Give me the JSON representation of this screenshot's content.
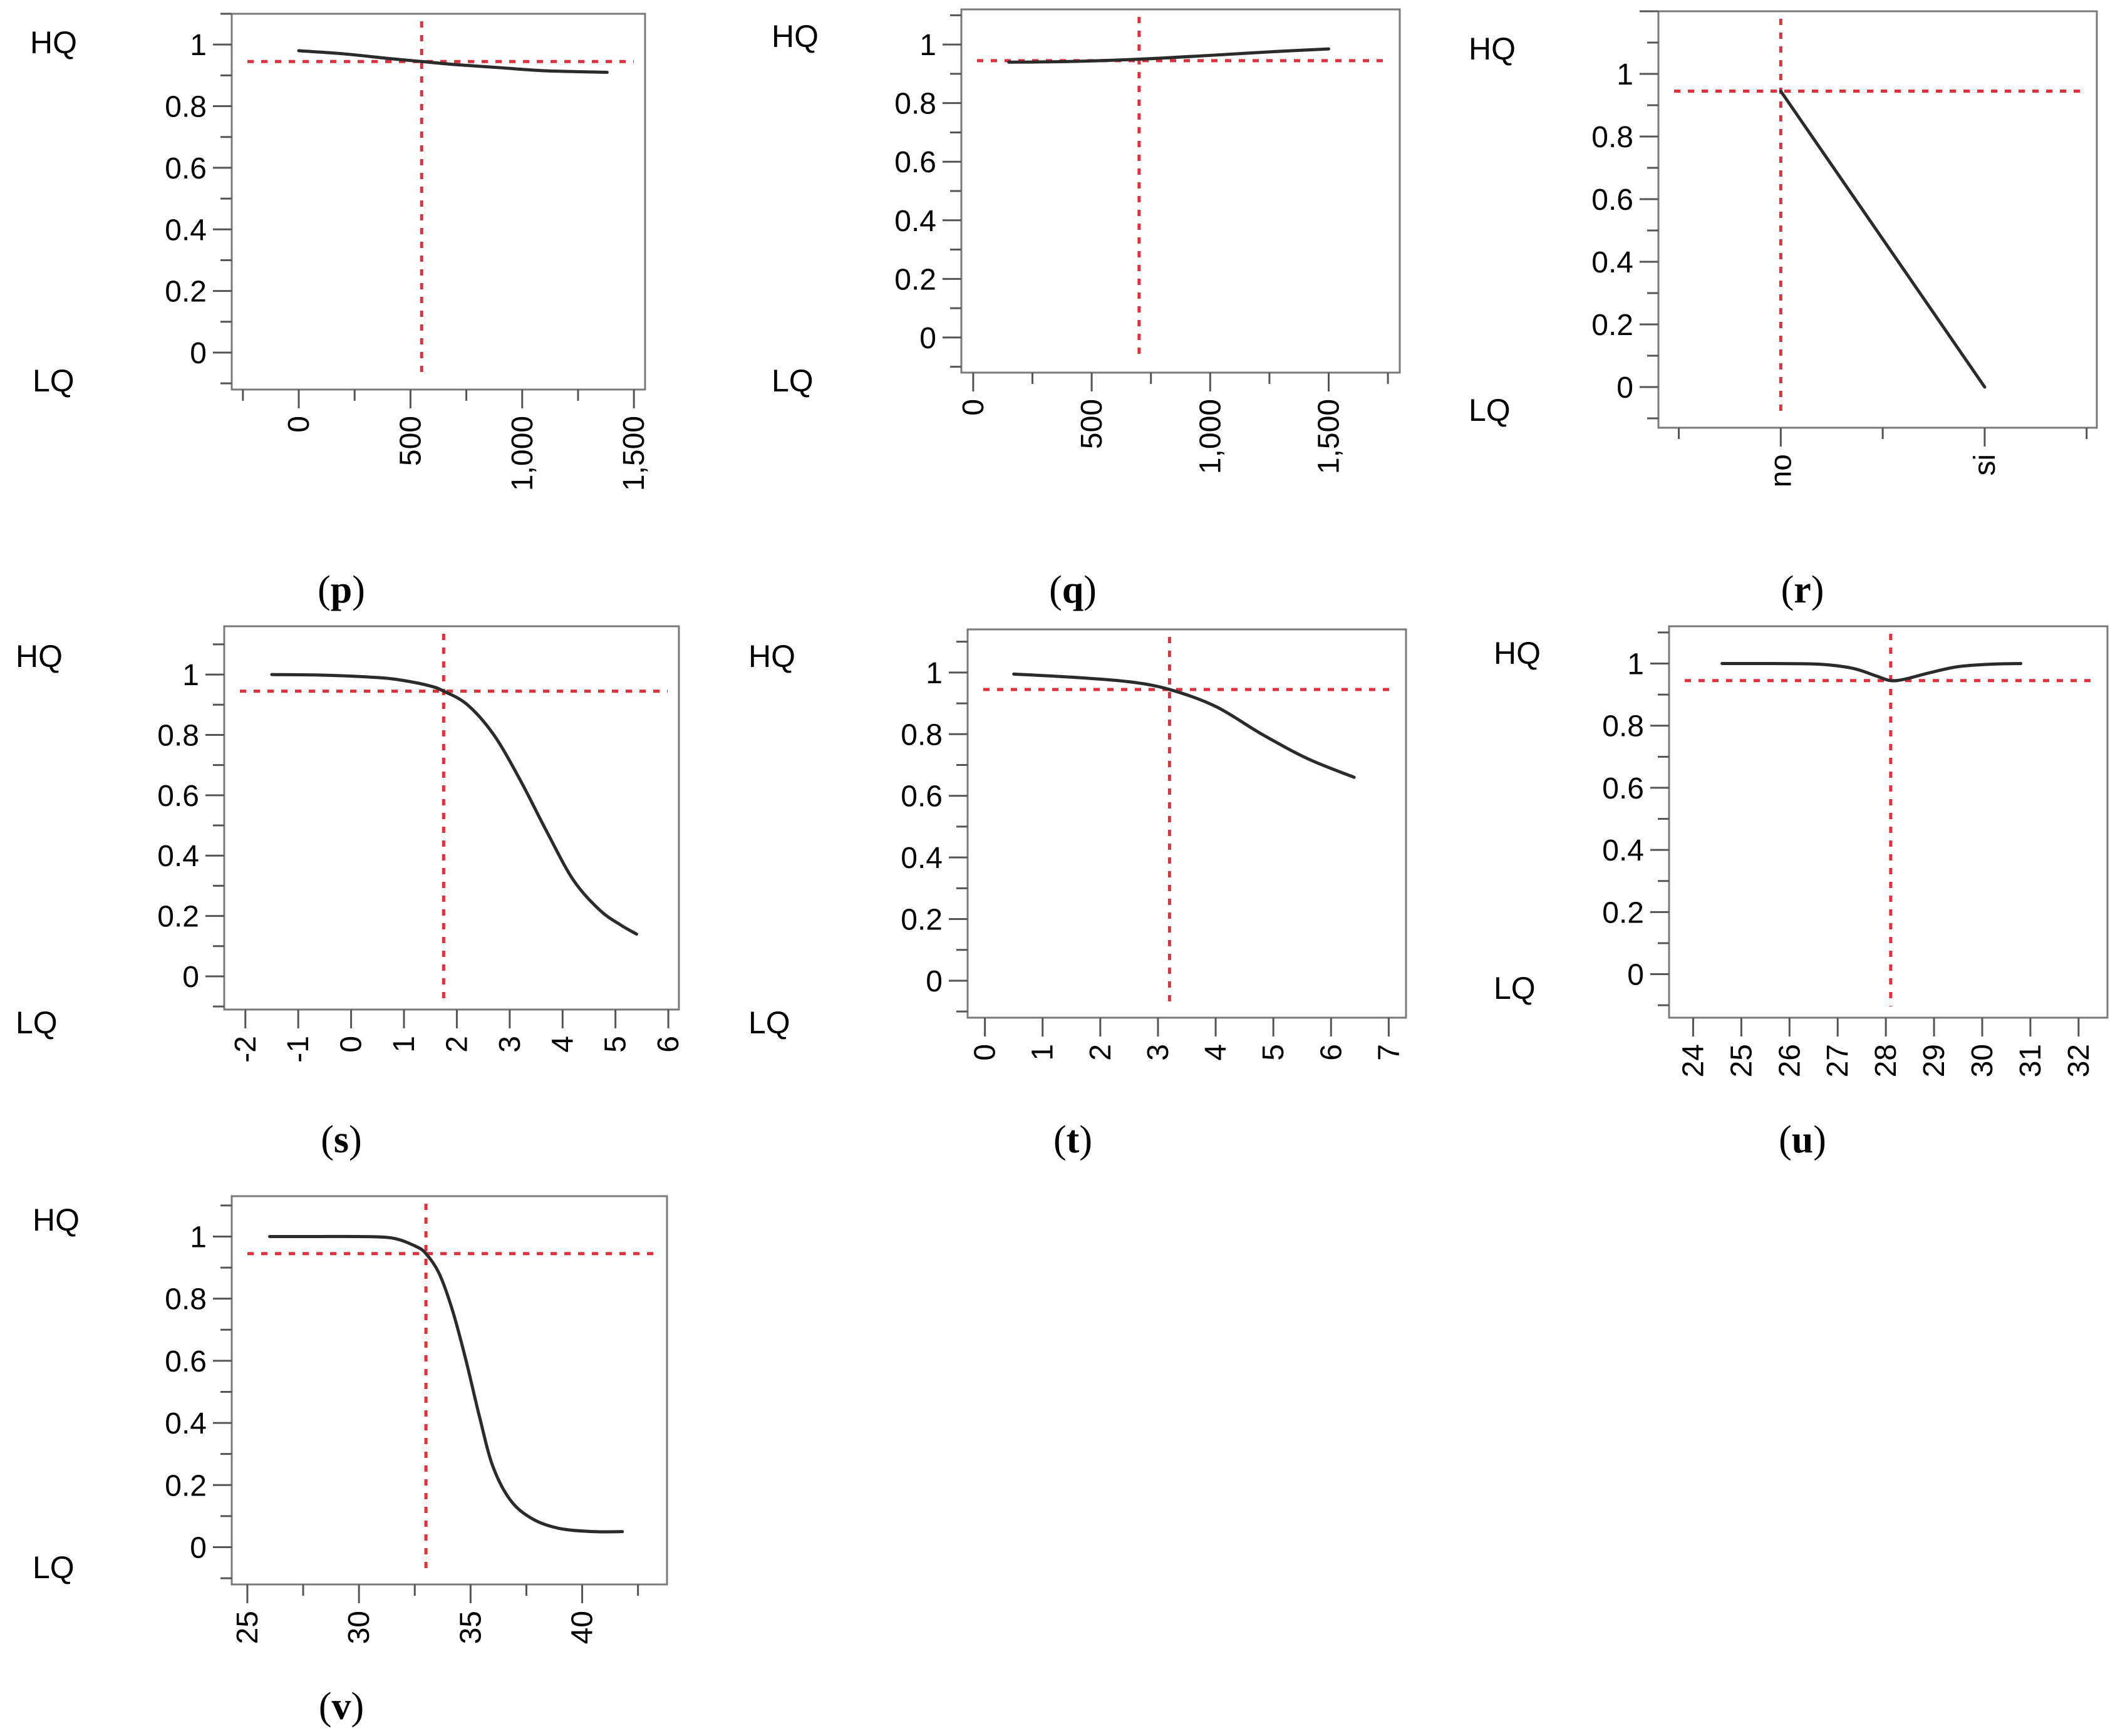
{
  "axis_labels": {
    "high": "HQ",
    "low": "LQ"
  },
  "colors": {
    "reference": "#e0303c",
    "curve": "#2b2b2b",
    "frame": "#7a7a7a"
  },
  "chart_data": [
    {
      "id": "p",
      "caption": "p",
      "type": "line",
      "xlim": [
        -300,
        1550
      ],
      "xticks": [
        0,
        500,
        1000,
        1500
      ],
      "xticklabels": [
        "0",
        "500",
        "1,000",
        "1,500"
      ],
      "ylim": [
        -0.12,
        1.1
      ],
      "yticks": [
        0,
        0.2,
        0.4,
        0.6,
        0.8,
        1
      ],
      "yticklabels": [
        "0",
        "0.2",
        "0.4",
        "0.6",
        "0.8",
        "1"
      ],
      "ref_x": 550,
      "ref_y": 0.945,
      "x": [
        0,
        200,
        400,
        550,
        700,
        900,
        1100,
        1380
      ],
      "y": [
        0.98,
        0.97,
        0.955,
        0.945,
        0.935,
        0.925,
        0.915,
        0.91
      ]
    },
    {
      "id": "q",
      "caption": "q",
      "type": "line",
      "xlim": [
        -50,
        1800
      ],
      "xticks": [
        0,
        500,
        1000,
        1500
      ],
      "xticklabels": [
        "0",
        "500",
        "1,000",
        "1,500"
      ],
      "ylim": [
        -0.12,
        1.12
      ],
      "yticks": [
        0,
        0.2,
        0.4,
        0.6,
        0.8,
        1
      ],
      "yticklabels": [
        "0",
        "0.2",
        "0.4",
        "0.6",
        "0.8",
        "1"
      ],
      "ref_x": 700,
      "ref_y": 0.945,
      "x": [
        150,
        400,
        700,
        1000,
        1250,
        1500
      ],
      "y": [
        0.94,
        0.942,
        0.95,
        0.963,
        0.975,
        0.985
      ]
    },
    {
      "id": "r",
      "caption": "r",
      "type": "line",
      "categories": [
        "no",
        "si"
      ],
      "xlim": [
        -0.6,
        1.55
      ],
      "xticks": [
        0,
        1
      ],
      "xticklabels": [
        "no",
        "si"
      ],
      "ylim": [
        -0.13,
        1.2
      ],
      "yticks": [
        0,
        0.2,
        0.4,
        0.6,
        0.8,
        1
      ],
      "yticklabels": [
        "0",
        "0.2",
        "0.4",
        "0.6",
        "0.8",
        "1"
      ],
      "ref_x": 0,
      "ref_y": 0.945,
      "x": [
        0,
        1
      ],
      "y": [
        0.945,
        0
      ]
    },
    {
      "id": "s",
      "caption": "s",
      "type": "line",
      "xlim": [
        -2.4,
        6.2
      ],
      "xticks": [
        -2,
        -1,
        0,
        1,
        2,
        3,
        4,
        5,
        6
      ],
      "xticklabels": [
        "-2",
        "-1",
        "0",
        "1",
        "2",
        "3",
        "4",
        "5",
        "6"
      ],
      "ylim": [
        -0.11,
        1.16
      ],
      "yticks": [
        0,
        0.2,
        0.4,
        0.6,
        0.8,
        1
      ],
      "yticklabels": [
        "0",
        "0.2",
        "0.4",
        "0.6",
        "0.8",
        "1"
      ],
      "ref_x": 1.75,
      "ref_y": 0.945,
      "x": [
        -1.5,
        -0.5,
        0.5,
        1.0,
        1.5,
        1.75,
        2.2,
        2.7,
        3.2,
        3.7,
        4.2,
        4.7,
        5.1,
        5.4
      ],
      "y": [
        1.0,
        0.998,
        0.99,
        0.98,
        0.962,
        0.945,
        0.9,
        0.8,
        0.65,
        0.48,
        0.32,
        0.22,
        0.17,
        0.14
      ]
    },
    {
      "id": "t",
      "caption": "t",
      "type": "line",
      "xlim": [
        -0.3,
        7.3
      ],
      "xticks": [
        0,
        1,
        2,
        3,
        4,
        5,
        6,
        7
      ],
      "xticklabels": [
        "0",
        "1",
        "2",
        "3",
        "4",
        "5",
        "6",
        "7"
      ],
      "ylim": [
        -0.12,
        1.14
      ],
      "yticks": [
        0,
        0.2,
        0.4,
        0.6,
        0.8,
        1
      ],
      "yticklabels": [
        "0",
        "0.2",
        "0.4",
        "0.6",
        "0.8",
        "1"
      ],
      "ref_x": 3.2,
      "ref_y": 0.945,
      "x": [
        0.5,
        1.5,
        2.5,
        3.2,
        4.0,
        4.8,
        5.6,
        6.4
      ],
      "y": [
        0.995,
        0.985,
        0.97,
        0.945,
        0.89,
        0.8,
        0.72,
        0.66
      ]
    },
    {
      "id": "u",
      "caption": "u",
      "type": "line",
      "xlim": [
        23.5,
        32.6
      ],
      "xticks": [
        24,
        25,
        26,
        27,
        28,
        29,
        30,
        31,
        32
      ],
      "xticklabels": [
        "24",
        "25",
        "26",
        "27",
        "28",
        "29",
        "30",
        "31",
        "32"
      ],
      "ylim": [
        -0.14,
        1.12
      ],
      "yticks": [
        0,
        0.2,
        0.4,
        0.6,
        0.8,
        1
      ],
      "yticklabels": [
        "0",
        "0.2",
        "0.4",
        "0.6",
        "0.8",
        "1"
      ],
      "ref_x": 28.1,
      "ref_y": 0.945,
      "x": [
        24.6,
        25.6,
        26.6,
        27.3,
        27.8,
        28.1,
        28.4,
        28.9,
        29.5,
        30.2,
        30.8
      ],
      "y": [
        1.0,
        1.0,
        0.998,
        0.985,
        0.96,
        0.945,
        0.95,
        0.97,
        0.99,
        0.998,
        1.0
      ]
    },
    {
      "id": "v",
      "caption": "v",
      "type": "line",
      "xlim": [
        24.3,
        43.8
      ],
      "xticks": [
        25,
        30,
        35,
        40
      ],
      "xticklabels": [
        "25",
        "30",
        "35",
        "40"
      ],
      "ylim": [
        -0.12,
        1.13
      ],
      "yticks": [
        0,
        0.2,
        0.4,
        0.6,
        0.8,
        1
      ],
      "yticklabels": [
        "0",
        "0.2",
        "0.4",
        "0.6",
        "0.8",
        "1"
      ],
      "ref_x": 33,
      "ref_y": 0.945,
      "x": [
        26,
        28,
        30,
        31.5,
        32.5,
        33,
        33.6,
        34.2,
        34.8,
        35.4,
        36,
        36.8,
        37.8,
        39,
        40.5,
        41.8
      ],
      "y": [
        1.0,
        1.0,
        1.0,
        0.995,
        0.97,
        0.945,
        0.88,
        0.76,
        0.6,
        0.42,
        0.26,
        0.15,
        0.09,
        0.06,
        0.05,
        0.05
      ]
    }
  ]
}
